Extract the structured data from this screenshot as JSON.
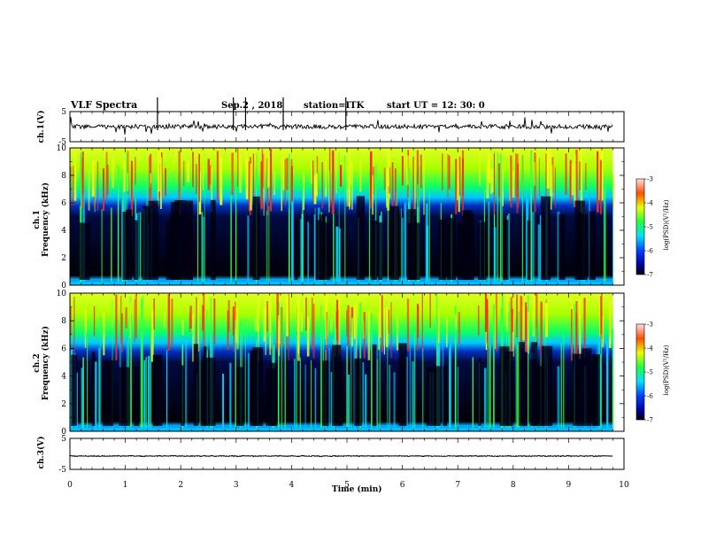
{
  "header": {
    "title": "VLF Spectra",
    "date": "Sep.2 , 2018",
    "station": "station=ITK",
    "start_ut": "start UT =  12: 30: 0"
  },
  "chart_data": [
    {
      "type": "line",
      "name": "ch1-waveform",
      "ylabel": "ch.1(V)",
      "ylim": [
        -5,
        5
      ],
      "yticks": [
        "5",
        "-5"
      ],
      "baseline": 0,
      "xlim": [
        0,
        10
      ]
    },
    {
      "type": "heatmap",
      "name": "ch1-spectrogram",
      "ylabel": "ch.1 Frequency (kHz)",
      "ylim": [
        0,
        10
      ],
      "yticks": [
        "0",
        "2",
        "4",
        "6",
        "8",
        "10"
      ],
      "xlim": [
        0,
        10
      ],
      "data_extent_x": 9.8,
      "colorbar": {
        "label": "log(PSD)(V²/Hz)",
        "ticks": [
          "-3",
          "-4",
          "-5",
          "-6",
          "-7"
        ],
        "range": [
          -7,
          -3
        ]
      }
    },
    {
      "type": "heatmap",
      "name": "ch2-spectrogram",
      "ylabel": "ch.2 Frequency (kHz)",
      "ylim": [
        0,
        10
      ],
      "yticks": [
        "0",
        "2",
        "4",
        "6",
        "8",
        "10"
      ],
      "xlim": [
        0,
        10
      ],
      "data_extent_x": 9.8,
      "colorbar": {
        "label": "log(PSD)(V²/Hz)",
        "ticks": [
          "-3",
          "-4",
          "-5",
          "-6",
          "-7"
        ],
        "range": [
          -7,
          -3
        ]
      }
    },
    {
      "type": "line",
      "name": "ch3-waveform",
      "ylabel": "ch.3(V)",
      "ylim": [
        -5,
        5
      ],
      "yticks": [
        "5",
        "-5"
      ],
      "baseline": -0.7,
      "xlim": [
        0,
        10
      ]
    }
  ],
  "xaxis": {
    "label": "Time (min)",
    "ticks": [
      "0",
      "1",
      "2",
      "3",
      "4",
      "5",
      "6",
      "7",
      "8",
      "9",
      "10"
    ]
  },
  "labels": {
    "ch1_freq_line1": "ch.1",
    "ch1_freq_line2": "Frequency (kHz)",
    "ch2_freq_line1": "ch.2",
    "ch2_freq_line2": "Frequency (kHz)",
    "colorbar_label": "log(PSD)(V²/Hz)"
  }
}
